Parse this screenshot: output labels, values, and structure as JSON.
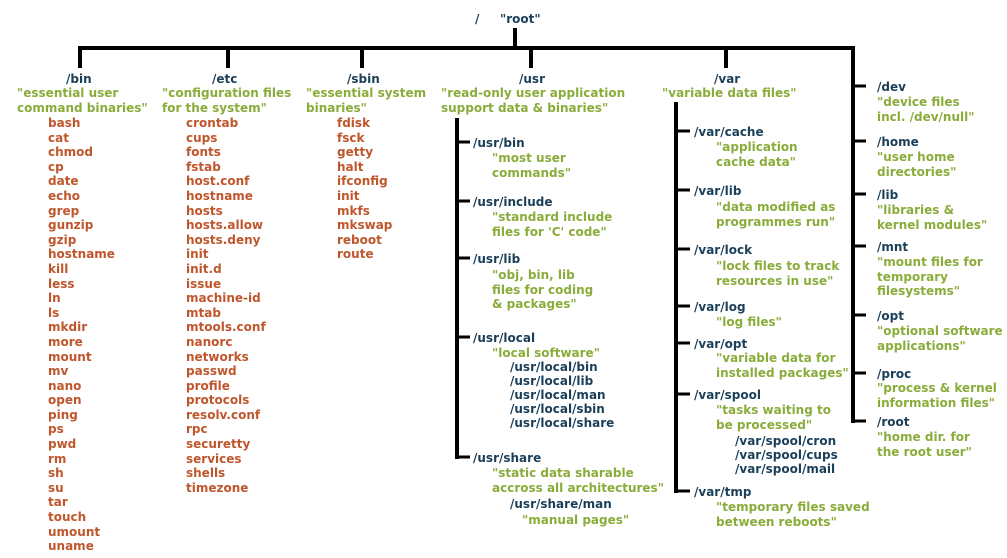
{
  "colors": {
    "dir": "#1b3f59",
    "desc": "#8aac3a",
    "file": "#c0562c",
    "line": "#000000"
  },
  "root": {
    "label": "/",
    "name": "\"root\""
  },
  "bin": {
    "label": "/bin",
    "desc": [
      "\"essential user",
      "command binaries\""
    ],
    "files": [
      "bash",
      "cat",
      "chmod",
      "cp",
      "date",
      "echo",
      "grep",
      "gunzip",
      "gzip",
      "hostname",
      "kill",
      "less",
      "ln",
      "ls",
      "mkdir",
      "more",
      "mount",
      "mv",
      "nano",
      "open",
      "ping",
      "ps",
      "pwd",
      "rm",
      "sh",
      "su",
      "tar",
      "touch",
      "umount",
      "uname"
    ]
  },
  "etc": {
    "label": "/etc",
    "desc": [
      "\"configuration files",
      "for the system\""
    ],
    "files": [
      "crontab",
      "cups",
      "fonts",
      "fstab",
      "host.conf",
      "hostname",
      "hosts",
      "hosts.allow",
      "hosts.deny",
      "init",
      "init.d",
      "issue",
      "machine-id",
      "mtab",
      "mtools.conf",
      "nanorc",
      "networks",
      "passwd",
      "profile",
      "protocols",
      "resolv.conf",
      "rpc",
      "securetty",
      "services",
      "shells",
      "timezone"
    ]
  },
  "sbin": {
    "label": "/sbin",
    "desc": [
      "\"essential system",
      "binaries\""
    ],
    "files": [
      "fdisk",
      "fsck",
      "getty",
      "halt",
      "ifconfig",
      "init",
      "mkfs",
      "mkswap",
      "reboot",
      "route"
    ]
  },
  "usr": {
    "label": "/usr",
    "desc": [
      "\"read-only user application",
      "support data & binaries\""
    ],
    "bin": {
      "label": "/usr/bin",
      "desc": [
        "\"most user",
        "commands\""
      ]
    },
    "include": {
      "label": "/usr/include",
      "desc": [
        "\"standard include",
        "files for 'C' code\""
      ]
    },
    "lib": {
      "label": "/usr/lib",
      "desc": [
        "\"obj, bin, lib",
        "files for coding",
        "& packages\""
      ]
    },
    "local": {
      "label": "/usr/local",
      "desc": [
        "\"local software\""
      ],
      "subs": [
        "/usr/local/bin",
        "/usr/local/lib",
        "/usr/local/man",
        "/usr/local/sbin",
        "/usr/local/share"
      ]
    },
    "share": {
      "label": "/usr/share",
      "desc": [
        "\"static data sharable",
        "accross all architectures\""
      ],
      "man": "/usr/share/man",
      "man_desc": "\"manual pages\""
    }
  },
  "var": {
    "label": "/var",
    "desc": [
      "\"variable data files\""
    ],
    "cache": {
      "label": "/var/cache",
      "desc": [
        "\"application",
        "cache data\""
      ]
    },
    "lib": {
      "label": "/var/lib",
      "desc": [
        "\"data modified as",
        "programmes run\""
      ]
    },
    "lock": {
      "label": "/var/lock",
      "desc": [
        "\"lock files to track",
        "resources in use\""
      ]
    },
    "log": {
      "label": "/var/log",
      "desc": [
        "\"log files\""
      ]
    },
    "opt": {
      "label": "/var/opt",
      "desc": [
        "\"variable data for",
        "installed packages\""
      ]
    },
    "spool": {
      "label": "/var/spool",
      "desc": [
        "\"tasks waiting to",
        "be processed\""
      ],
      "subs": [
        "/var/spool/cron",
        "/var/spool/cups",
        "/var/spool/mail"
      ]
    },
    "tmp": {
      "label": "/var/tmp",
      "desc": [
        "\"temporary files saved",
        "between reboots\""
      ]
    }
  },
  "others": [
    {
      "label": "/dev",
      "desc": [
        "\"device files",
        "incl. /dev/null\""
      ]
    },
    {
      "label": "/home",
      "desc": [
        "\"user home",
        "directories\""
      ]
    },
    {
      "label": "/lib",
      "desc": [
        "\"libraries &",
        "kernel modules\""
      ]
    },
    {
      "label": "/mnt",
      "desc": [
        "\"mount files for",
        "temporary",
        "filesystems\""
      ]
    },
    {
      "label": "/opt",
      "desc": [
        "\"optional software",
        "applications\""
      ]
    },
    {
      "label": "/proc",
      "desc": [
        "\"process & kernel",
        "information files\""
      ]
    },
    {
      "label": "/root",
      "desc": [
        "\"home dir. for",
        "the root user\""
      ]
    }
  ]
}
